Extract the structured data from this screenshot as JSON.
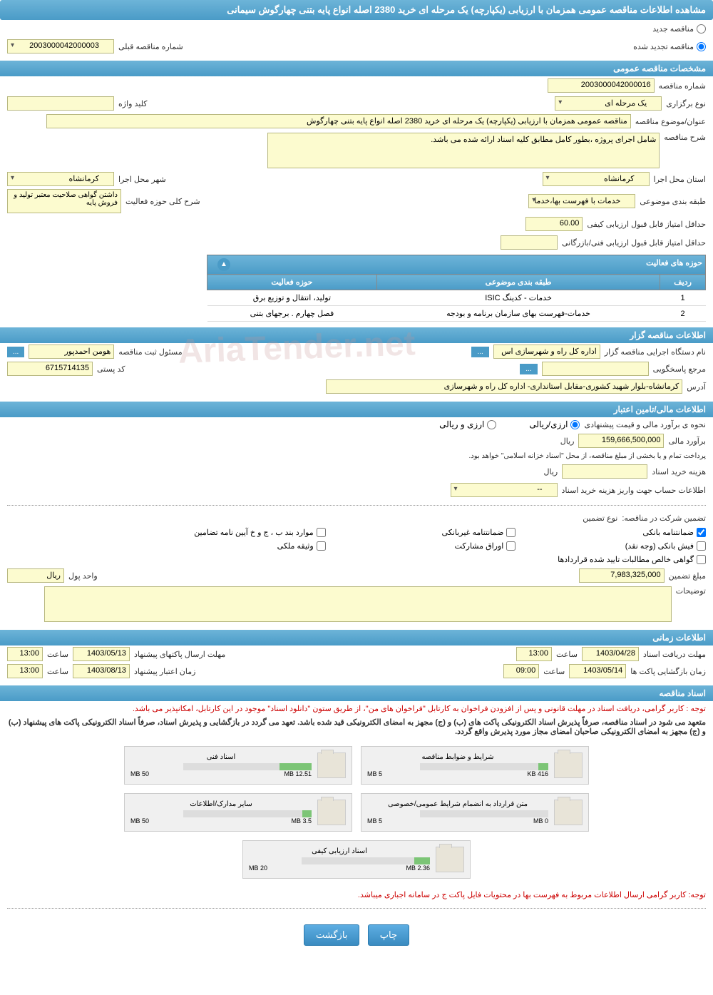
{
  "header": {
    "title": "مشاهده اطلاعات مناقصه عمومی همزمان با ارزیابی (یکپارچه) یک مرحله ای خرید 2380 اصله انواع پایه بتنی چهارگوش سیمانی"
  },
  "tender_status": {
    "new_label": "مناقصه جدید",
    "renewed_label": "مناقصه تجدید شده",
    "prev_number_label": "شماره مناقصه قبلی",
    "prev_number_value": "2003000042000003"
  },
  "sections": {
    "general": "مشخصات مناقصه عمومی",
    "holder": "اطلاعات مناقصه گزار",
    "financial": "اطلاعات مالی/تامین اعتبار",
    "timing": "اطلاعات زمانی",
    "documents": "اسناد مناقصه"
  },
  "general": {
    "number_label": "شماره مناقصه",
    "number_value": "2003000042000016",
    "type_label": "نوع برگزاری",
    "type_value": "یک مرحله ای",
    "keyword_label": "کلید واژه",
    "keyword_value": "",
    "title_label": "عنوان/موضوع مناقصه",
    "title_value": "مناقصه عمومی همزمان با ارزیابی (یکپارچه) یک مرحله ای خرید 2380 اصله انواع پایه بتنی چهارگوش",
    "desc_label": "شرح مناقصه",
    "desc_value": "شامل اجرای پروژه ،بطور کامل مطابق کلیه اسناد ارائه شده می باشد.",
    "province_label": "استان محل اجرا",
    "province_value": "کرمانشاه",
    "city_label": "شهر محل اجرا",
    "city_value": "کرمانشاه",
    "subject_class_label": "طبقه بندی موضوعی",
    "subject_class_value": "خدمات با فهرست بها،خدما",
    "activity_desc_label": "شرح کلی حوزه فعالیت",
    "activity_desc_value": "داشتن گواهی صلاحیت معتبر تولید و فروش پایه",
    "min_score_quality_label": "حداقل امتیاز قابل قبول ارزیابی کیفی",
    "min_score_quality_value": "60.00",
    "min_score_tech_label": "حداقل امتیاز قابل قبول ارزیابی فنی/بازرگانی",
    "min_score_tech_value": ""
  },
  "activity_table": {
    "header": "حوزه های فعالیت",
    "cols": [
      "ردیف",
      "طبقه بندی موضوعی",
      "حوزه فعالیت"
    ],
    "rows": [
      [
        "1",
        "خدمات - کدینگ ISIC",
        "تولید، انتقال و توزیع برق"
      ],
      [
        "2",
        "خدمات-فهرست بهای سازمان برنامه و بودجه",
        "فصل چهارم . برجهای بتنی"
      ]
    ]
  },
  "holder": {
    "org_label": "نام دستگاه اجرایی مناقصه گزار",
    "org_value": "اداره کل راه و شهرسازی اس",
    "registrar_label": "مسئول ثبت مناقصه",
    "registrar_value": "هومن احمدپور",
    "contact_label": "مرجع پاسخگویی",
    "contact_value": "",
    "postal_label": "کد پستی",
    "postal_value": "6715714135",
    "address_label": "آدرس",
    "address_value": "کرمانشاه-بلوار شهید کشوری-مقابل استانداری- اداره کل راه و شهرسازی"
  },
  "financial": {
    "estimate_method_label": "نحوه ی برآورد مالی و قیمت پیشنهادی",
    "opt_currency": "ارزی/ریالی",
    "opt_rial": "ارزی و ریالی",
    "estimate_label": "برآورد مالی",
    "estimate_value": "159,666,500,000",
    "unit_label": "ریال",
    "treasury_note": "پرداخت تمام و یا بخشی از مبلغ مناقصه، از محل \"اسناد خزانه اسلامی\" خواهد بود.",
    "doc_fee_label": "هزینه خرید اسناد",
    "doc_fee_value": "",
    "doc_fee_unit": "ریال",
    "account_label": "اطلاعات حساب جهت واریز هزینه خرید اسناد",
    "account_value": "--",
    "guarantee_label": "تضمین شرکت در مناقصه:",
    "guarantee_type_label": "نوع تضمین",
    "guarantee_opts": [
      "ضمانتنامه بانکی",
      "ضمانتنامه غیربانکی",
      "موارد بند ب ، ج و خ آیین نامه تضامین",
      "فیش بانکی (وجه نقد)",
      "اوراق مشارکت",
      "وثیقه ملکی",
      "گواهی خالص مطالبات تایید شده قراردادها"
    ],
    "guarantee_amount_label": "مبلغ تضمین",
    "guarantee_amount_value": "7,983,325,000",
    "guarantee_unit_label": "واحد پول",
    "guarantee_unit_value": "ریال",
    "notes_label": "توضیحات",
    "notes_value": ""
  },
  "timing": {
    "doc_deadline_label": "مهلت دریافت اسناد",
    "doc_deadline_date": "1403/04/28",
    "doc_deadline_time": "13:00",
    "submit_deadline_label": "مهلت ارسال پاکتهای پیشنهاد",
    "submit_deadline_date": "1403/05/13",
    "submit_deadline_time": "13:00",
    "opening_label": "زمان بازگشایی پاکت ها",
    "opening_date": "1403/05/14",
    "opening_time": "09:00",
    "validity_label": "زمان اعتبار پیشنهاد",
    "validity_date": "1403/08/13",
    "validity_time": "13:00",
    "time_unit": "ساعت"
  },
  "documents": {
    "notice1": "توجه : کاربر گرامی، دریافت اسناد در مهلت قانونی و پس از افزودن فراخوان به کارتابل \"فراخوان های من\"، از طریق ستون \"دانلود اسناد\" موجود در این کارتابل، امکانپذیر می باشد.",
    "notice2": "متعهد می شود در اسناد مناقصه، صرفاً پذیرش اسناد الکترونیکی پاکت های (ب) و (ج) مجهز به امضای الکترونیکی قید شده باشد. تعهد می گردد در بازگشایی و پذیرش اسناد، صرفاً اسناد الکترونیکی پاکت های پیشنهاد (ب) و (ج) مجهز به امضای الکترونیکی صاحبان امضای مجاز مورد پذیرش واقع گردد.",
    "notice3": "توجه: کاربر گرامی ارسال اطلاعات مربوط به فهرست بها در محتویات فایل پاکت ج در سامانه اجباری میباشد.",
    "folders": [
      {
        "title": "شرایط و ضوابط مناقصه",
        "used": "416 KB",
        "total": "5 MB",
        "pct": 8
      },
      {
        "title": "اسناد فنی",
        "used": "12.51 MB",
        "total": "50 MB",
        "pct": 25
      },
      {
        "title": "متن قرارداد به انضمام شرایط عمومی/خصوصی",
        "used": "0 MB",
        "total": "5 MB",
        "pct": 0
      },
      {
        "title": "سایر مدارک/اطلاعات",
        "used": "3.5 MB",
        "total": "50 MB",
        "pct": 7
      },
      {
        "title": "اسناد ارزیابی کیفی",
        "used": "2.36 MB",
        "total": "20 MB",
        "pct": 12
      }
    ]
  },
  "buttons": {
    "print": "چاپ",
    "back": "بازگشت"
  },
  "watermark": "AriaTender.net"
}
